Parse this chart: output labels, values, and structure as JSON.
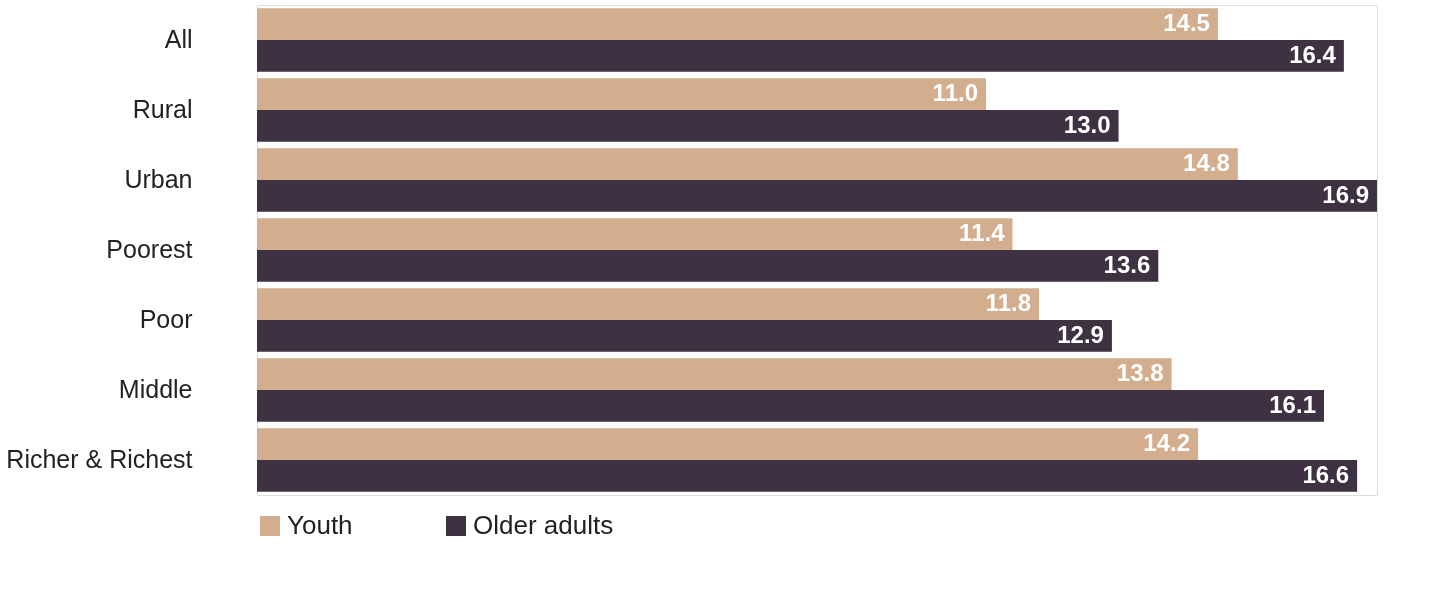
{
  "chart_data": {
    "type": "bar",
    "orientation": "horizontal",
    "categories": [
      "All",
      "Rural",
      "Urban",
      "Poorest",
      "Poor",
      "Middle",
      "Richer & Richest"
    ],
    "series": [
      {
        "name": "Youth",
        "color": "#d2ae8e",
        "values": [
          14.5,
          11.0,
          14.8,
          11.4,
          11.8,
          13.8,
          14.2
        ],
        "value_labels": [
          "14.5",
          "11.0",
          "14.8",
          "11.4",
          "11.8",
          "13.8",
          "14.2"
        ]
      },
      {
        "name": "Older adults",
        "color": "#3d3142",
        "values": [
          16.4,
          13.0,
          16.9,
          13.6,
          12.9,
          16.1,
          16.6
        ],
        "value_labels": [
          "16.4",
          "13.0",
          "16.9",
          "13.6",
          "12.9",
          "16.1",
          "16.6"
        ]
      }
    ],
    "legend": "bottom",
    "grid": false,
    "tick_labels": "y"
  }
}
